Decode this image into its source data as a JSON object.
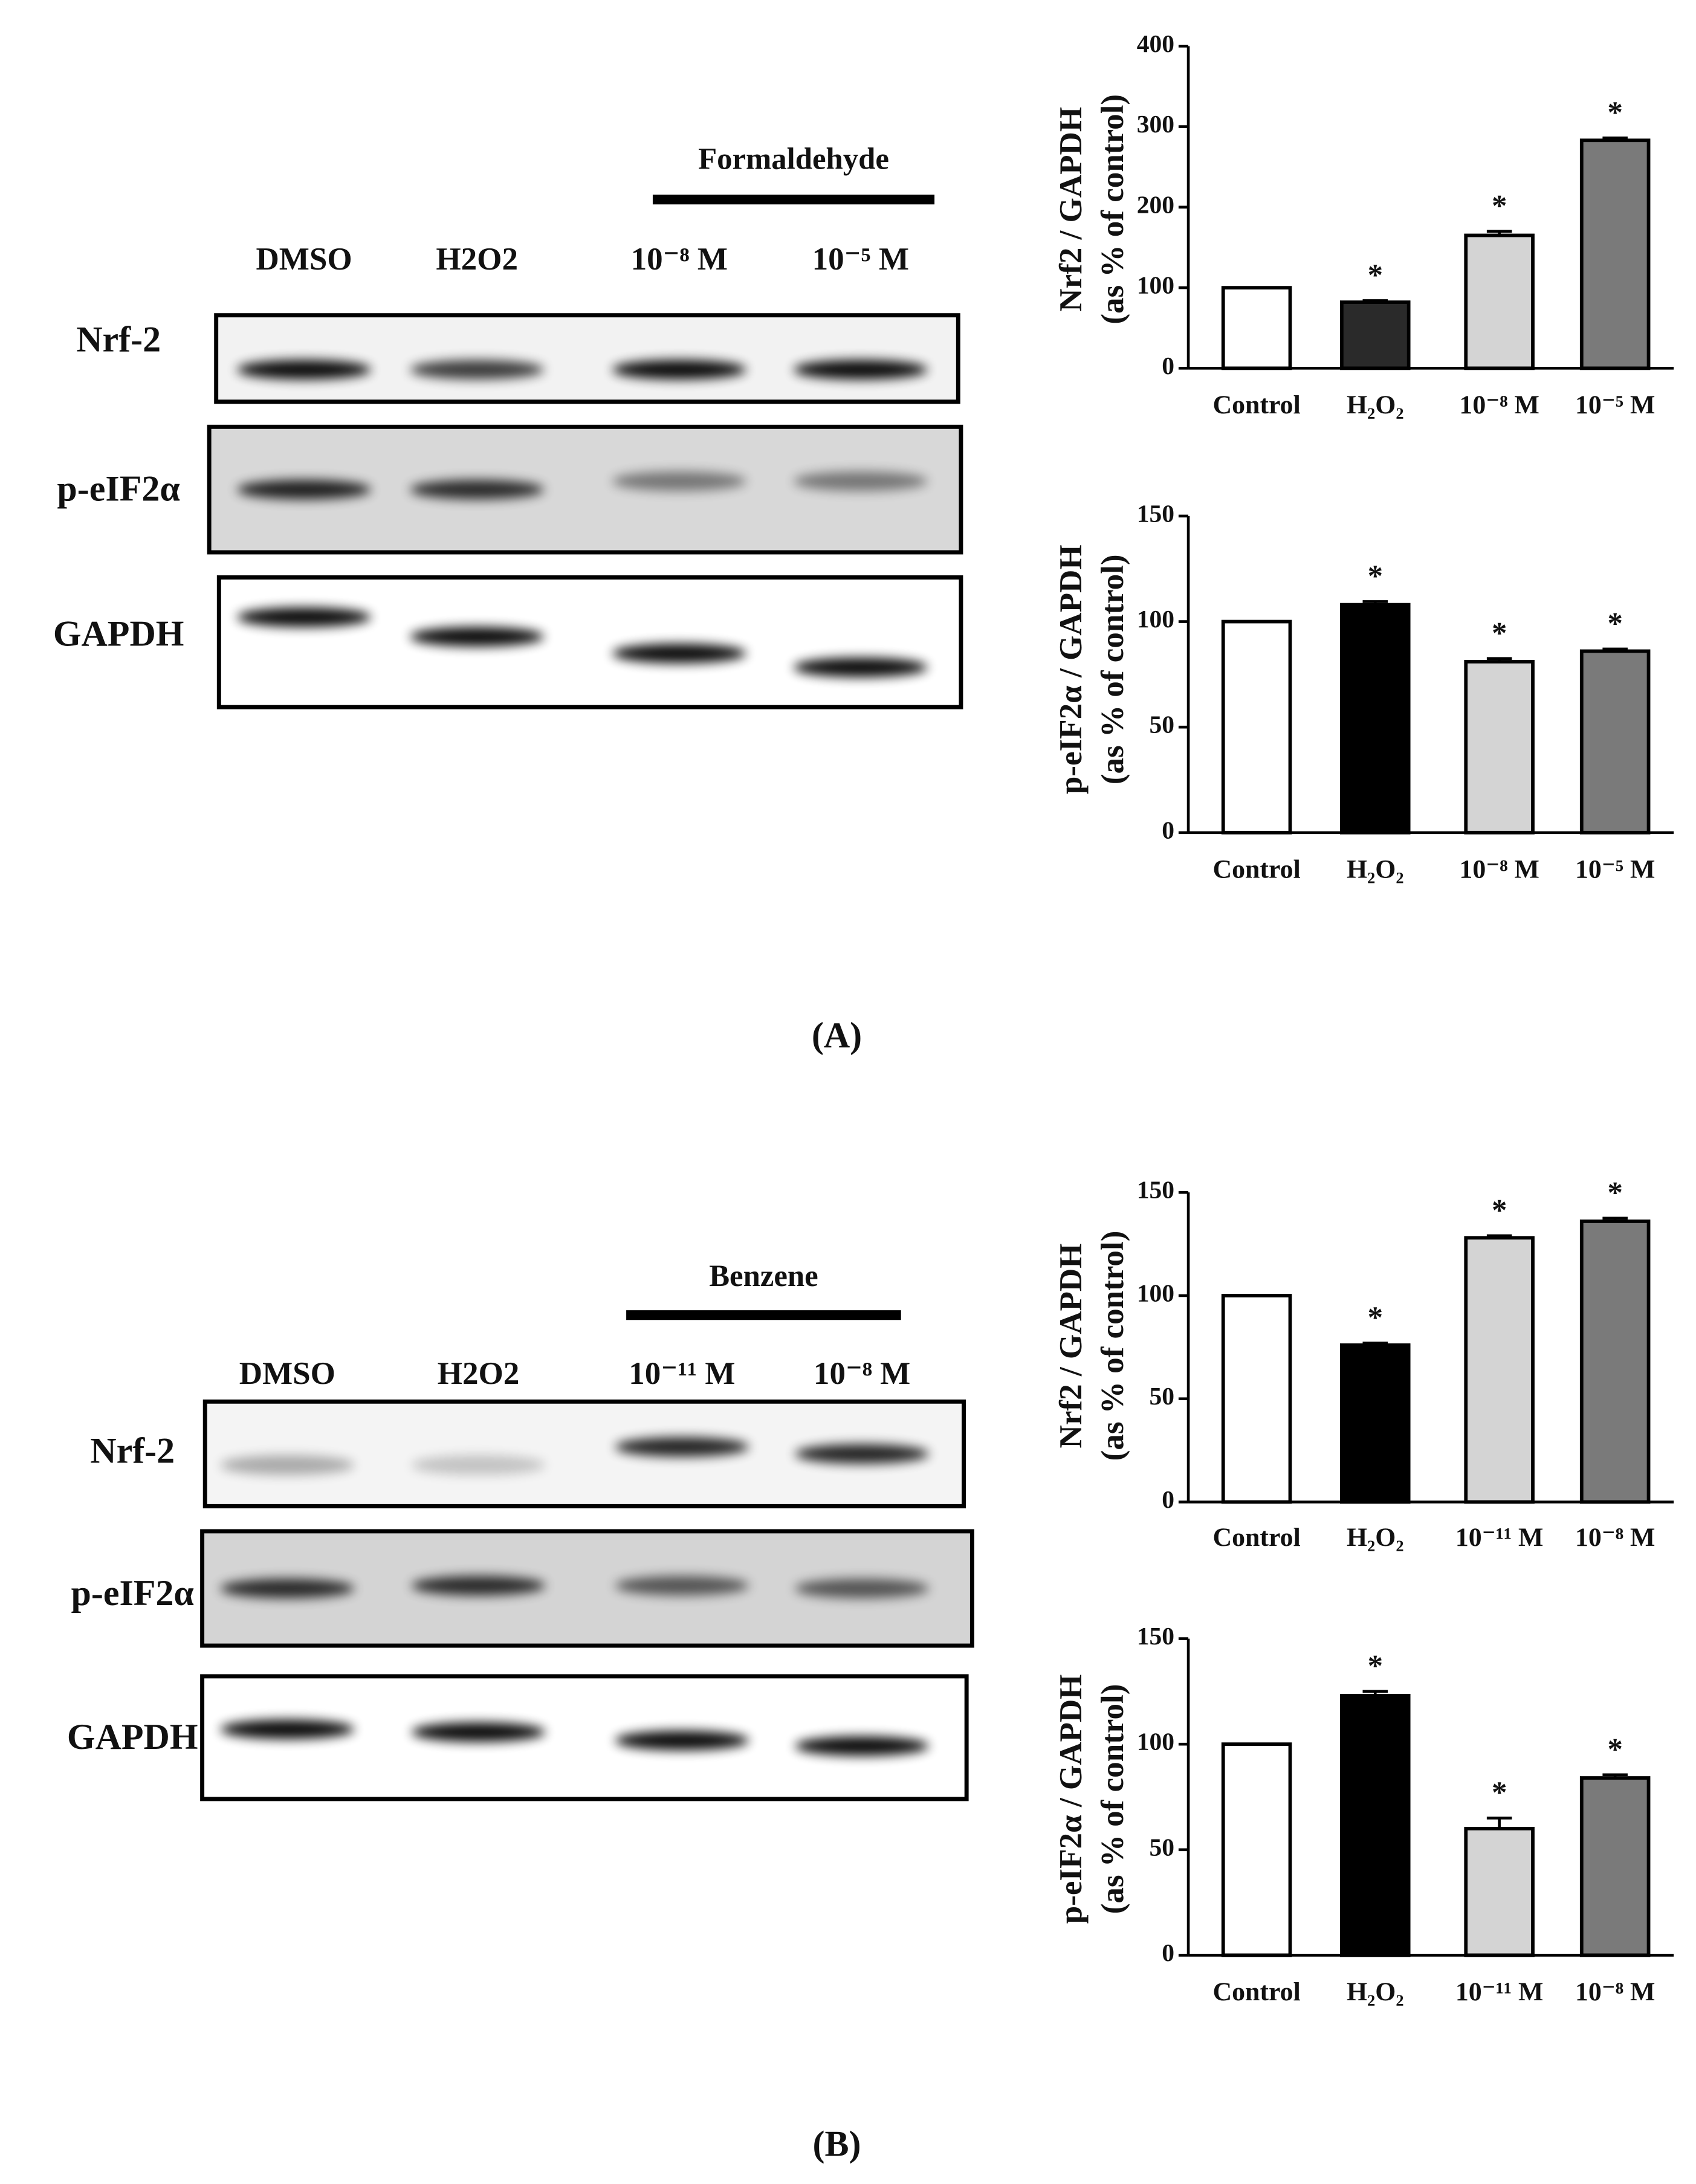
{
  "chart_data": [
    {
      "type": "bar",
      "ylabel": [
        "Nrf2 / GAPDH",
        "(as % of control)"
      ],
      "categories": [
        "Control",
        "H₂O₂",
        "10⁻⁸ M",
        "10⁻⁵ M"
      ],
      "values": [
        100,
        82,
        165,
        283
      ],
      "errors": [
        0,
        2,
        5,
        3
      ],
      "asterisks": [
        null,
        "*",
        "*",
        "*"
      ],
      "colors": [
        "#ffffff",
        "#2a2a2a",
        "#d4d4d4",
        "#7a7a7a"
      ],
      "ylim": [
        0,
        400
      ],
      "yticks": [
        0,
        100,
        200,
        300,
        400
      ],
      "grid": false
    },
    {
      "type": "bar",
      "ylabel": [
        "p-eIF2α / GAPDH",
        "(as % of control)"
      ],
      "categories": [
        "Control",
        "H₂O₂",
        "10⁻⁸ M",
        "10⁻⁵ M"
      ],
      "values": [
        100,
        108,
        81,
        86
      ],
      "errors": [
        0,
        1.5,
        1.5,
        1
      ],
      "asterisks": [
        null,
        "*",
        "*",
        "*"
      ],
      "colors": [
        "#ffffff",
        "#000000",
        "#d4d4d4",
        "#7a7a7a"
      ],
      "ylim": [
        0,
        150
      ],
      "yticks": [
        0,
        50,
        100,
        150
      ],
      "grid": false
    },
    {
      "type": "bar",
      "ylabel": [
        "Nrf2 / GAPDH",
        "(as % of control)"
      ],
      "categories": [
        "Control",
        "H₂O₂",
        "10⁻¹¹ M",
        "10⁻⁸ M"
      ],
      "values": [
        100,
        76,
        128,
        136
      ],
      "errors": [
        0,
        1,
        1,
        1.5
      ],
      "asterisks": [
        null,
        "*",
        "*",
        "*"
      ],
      "colors": [
        "#ffffff",
        "#000000",
        "#d4d4d4",
        "#7a7a7a"
      ],
      "ylim": [
        0,
        150
      ],
      "yticks": [
        0,
        50,
        100,
        150
      ],
      "grid": false
    },
    {
      "type": "bar",
      "ylabel": [
        "p-eIF2α / GAPDH",
        "(as % of control)"
      ],
      "categories": [
        "Control",
        "H₂O₂",
        "10⁻¹¹ M",
        "10⁻⁸ M"
      ],
      "values": [
        100,
        123,
        60,
        84
      ],
      "errors": [
        0,
        2,
        5,
        1.5
      ],
      "asterisks": [
        null,
        "*",
        "*",
        "*"
      ],
      "colors": [
        "#ffffff",
        "#000000",
        "#d4d4d4",
        "#7a7a7a"
      ],
      "ylim": [
        0,
        150
      ],
      "yticks": [
        0,
        50,
        100,
        150
      ],
      "grid": false
    }
  ],
  "blots": [
    {
      "group_label": "Formaldehyde",
      "lanes": [
        "DMSO",
        "H2O2",
        "10⁻⁸ M",
        "10⁻⁵ M"
      ],
      "rows": [
        "Nrf-2",
        "p-eIF2α",
        "GAPDH"
      ]
    },
    {
      "group_label": "Benzene",
      "lanes": [
        "DMSO",
        "H2O2",
        "10⁻¹¹ M",
        "10⁻⁸ M"
      ],
      "rows": [
        "Nrf-2",
        "p-eIF2α",
        "GAPDH"
      ]
    }
  ],
  "panel_labels": [
    "(A)",
    "(B)"
  ]
}
